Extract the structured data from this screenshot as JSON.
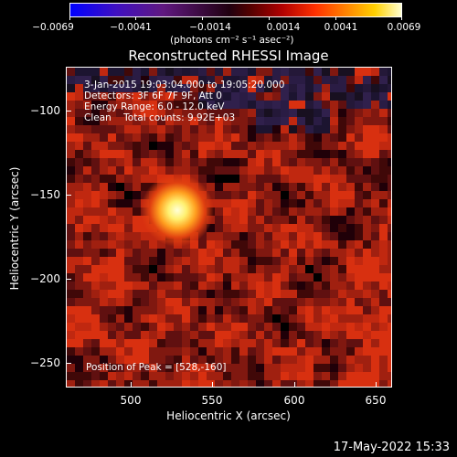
{
  "colorbar": {
    "tick_labels": [
      "−0.0069",
      "−0.0041",
      "−0.0014",
      "0.0014",
      "0.0041",
      "0.0069"
    ],
    "units": "(photons cm⁻² s⁻¹ asec⁻²)"
  },
  "plot": {
    "title": "Reconstructed RHESSI Image",
    "info": {
      "time_range": "3-Jan-2015 19:03:04.000 to 19:05:20.000",
      "detectors": "Detectors: 3F 6F 7F 9F, Att 0",
      "energy": "Energy Range: 6.0 - 12.0 keV",
      "clean": "Clean    Total counts: 9.92E+03"
    },
    "peak": "Position of Peak = [528,-160]",
    "x_axis": {
      "label": "Heliocentric X (arcsec)",
      "ticks": [
        "500",
        "550",
        "600",
        "650"
      ]
    },
    "y_axis": {
      "label": "Heliocentric Y (arcsec)",
      "ticks": [
        "−100",
        "−150",
        "−200",
        "−250"
      ]
    }
  },
  "footer": {
    "timestamp": "17-May-2022 15:33"
  }
}
